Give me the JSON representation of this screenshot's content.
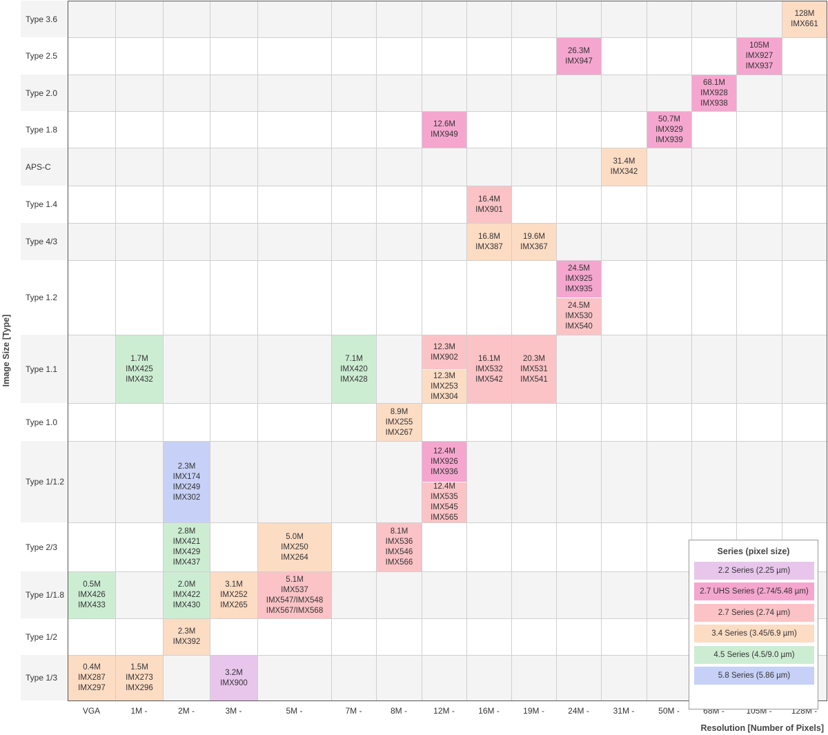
{
  "chart_data": {
    "type": "table",
    "ylabel": "Image Size [Type]",
    "xlabel": "Resolution [Number of Pixels]",
    "columns": [
      "VGA",
      "1M -",
      "2M -",
      "3M -",
      "5M -",
      "7M -",
      "8M -",
      "12M -",
      "16M -",
      "19M -",
      "24M -",
      "31M -",
      "50M -",
      "68M -",
      "105M -",
      "128M -"
    ],
    "rows": [
      "Type 3.6",
      "Type 2.5",
      "Type 2.0",
      "Type 1.8",
      "APS-C",
      "Type 1.4",
      "Type 4/3",
      "Type 1.2",
      "Type 1.1",
      "Type 1.0",
      "Type 1/1.2",
      "Type 2/3",
      "Type 1/1.8",
      "Type 1/2",
      "Type 1/3"
    ],
    "legend": {
      "title": "Series (pixel size)",
      "items": [
        {
          "key": "s22",
          "label": "2.2 Series (2.25 µm)",
          "color": "#e8c6ec"
        },
        {
          "key": "uhs",
          "label": "2.7 UHS Series  (2.74/5.48 µm)",
          "color": "#f5a6cf"
        },
        {
          "key": "s27",
          "label": "2.7 Series (2.74 µm)",
          "color": "#fbc3c6"
        },
        {
          "key": "s34",
          "label": "3.4 Series (3.45/6.9 µm)",
          "color": "#fddcc4"
        },
        {
          "key": "s45",
          "label": "4.5 Series (4.5/9.0 µm)",
          "color": "#cdedd3"
        },
        {
          "key": "s58",
          "label": "5.8 Series (5.86 µm)",
          "color": "#c7d1f7"
        }
      ]
    },
    "cells": [
      {
        "row": 0,
        "col": 15,
        "series": "s34",
        "lines": [
          "128M",
          "IMX661"
        ]
      },
      {
        "row": 1,
        "col": 10,
        "series": "uhs",
        "lines": [
          "26.3M",
          "IMX947"
        ]
      },
      {
        "row": 1,
        "col": 14,
        "series": "uhs",
        "lines": [
          "105M",
          "IMX927",
          "IMX937"
        ]
      },
      {
        "row": 2,
        "col": 13,
        "series": "uhs",
        "lines": [
          "68.1M",
          "IMX928",
          "IMX938"
        ]
      },
      {
        "row": 3,
        "col": 7,
        "series": "uhs",
        "lines": [
          "12.6M",
          "IMX949"
        ]
      },
      {
        "row": 3,
        "col": 12,
        "series": "uhs",
        "lines": [
          "50.7M",
          "IMX929",
          "IMX939"
        ]
      },
      {
        "row": 4,
        "col": 11,
        "series": "s34",
        "lines": [
          "31.4M",
          "IMX342"
        ]
      },
      {
        "row": 5,
        "col": 8,
        "series": "s27",
        "lines": [
          "16.4M",
          "IMX901"
        ]
      },
      {
        "row": 6,
        "col": 8,
        "series": "s34",
        "lines": [
          "16.8M",
          "IMX387"
        ]
      },
      {
        "row": 6,
        "col": 9,
        "series": "s34",
        "lines": [
          "19.6M",
          "IMX367"
        ]
      },
      {
        "row": 7,
        "col": 10,
        "series": "uhs",
        "part": "top",
        "lines": [
          "24.5M",
          "IMX925",
          "IMX935"
        ]
      },
      {
        "row": 7,
        "col": 10,
        "series": "s27",
        "part": "bottom",
        "lines": [
          "24.5M",
          "IMX530",
          "IMX540"
        ]
      },
      {
        "row": 8,
        "col": 1,
        "series": "s45",
        "lines": [
          "1.7M",
          "IMX425",
          "IMX432"
        ]
      },
      {
        "row": 8,
        "col": 5,
        "series": "s45",
        "lines": [
          "7.1M",
          "IMX420",
          "IMX428"
        ]
      },
      {
        "row": 8,
        "col": 7,
        "series": "s27",
        "part": "top",
        "lines": [
          "12.3M",
          "IMX902"
        ]
      },
      {
        "row": 8,
        "col": 7,
        "series": "s34",
        "part": "bottom",
        "lines": [
          "12.3M",
          "IMX253",
          "IMX304"
        ]
      },
      {
        "row": 8,
        "col": 8,
        "series": "s27",
        "lines": [
          "16.1M",
          "IMX532",
          "IMX542"
        ]
      },
      {
        "row": 8,
        "col": 9,
        "series": "s27",
        "lines": [
          "20.3M",
          "IMX531",
          "IMX541"
        ]
      },
      {
        "row": 9,
        "col": 6,
        "series": "s34",
        "lines": [
          "8.9M",
          "IMX255",
          "IMX267"
        ]
      },
      {
        "row": 10,
        "col": 2,
        "series": "s58",
        "lines": [
          "2.3M",
          "IMX174",
          "IMX249",
          "IMX302"
        ]
      },
      {
        "row": 10,
        "col": 7,
        "series": "uhs",
        "part": "top",
        "lines": [
          "12.4M",
          "IMX926",
          "IMX936"
        ]
      },
      {
        "row": 10,
        "col": 7,
        "series": "s27",
        "part": "bottom",
        "lines": [
          "12.4M",
          "IMX535",
          "IMX545",
          "IMX565"
        ]
      },
      {
        "row": 11,
        "col": 2,
        "series": "s45",
        "lines": [
          "2.8M",
          "IMX421",
          "IMX429",
          "IMX437"
        ]
      },
      {
        "row": 11,
        "col": 4,
        "series": "s34",
        "lines": [
          "5.0M",
          "IMX250",
          "IMX264"
        ]
      },
      {
        "row": 11,
        "col": 6,
        "series": "s27",
        "lines": [
          "8.1M",
          "IMX536",
          "IMX546",
          "IMX566"
        ]
      },
      {
        "row": 12,
        "col": 0,
        "series": "s45",
        "lines": [
          "0.5M",
          "IMX426",
          "IMX433"
        ]
      },
      {
        "row": 12,
        "col": 2,
        "series": "s45",
        "lines": [
          "2.0M",
          "IMX422",
          "IMX430"
        ]
      },
      {
        "row": 12,
        "col": 3,
        "series": "s34",
        "lines": [
          "3.1M",
          "IMX252",
          "IMX265"
        ]
      },
      {
        "row": 12,
        "col": 4,
        "series": "s27",
        "lines": [
          "5.1M",
          "IMX537",
          "IMX547/IMX548",
          "IMX567/IMX568"
        ]
      },
      {
        "row": 13,
        "col": 2,
        "series": "s34",
        "lines": [
          "2.3M",
          "IMX392"
        ]
      },
      {
        "row": 14,
        "col": 0,
        "series": "s34",
        "lines": [
          "0.4M",
          "IMX287",
          "IMX297"
        ]
      },
      {
        "row": 14,
        "col": 1,
        "series": "s34",
        "lines": [
          "1.5M",
          "IMX273",
          "IMX296"
        ]
      },
      {
        "row": 14,
        "col": 3,
        "series": "s22",
        "lines": [
          "3.2M",
          "IMX900"
        ]
      }
    ]
  }
}
